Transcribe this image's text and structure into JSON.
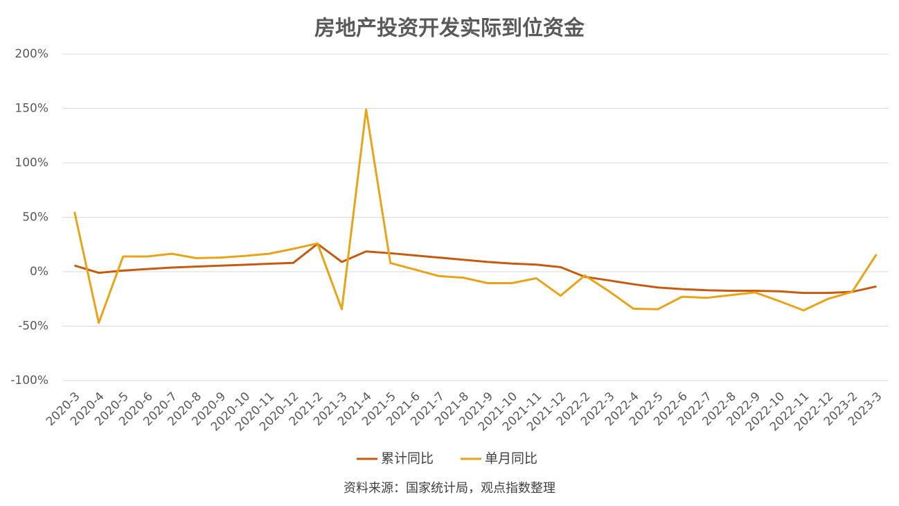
{
  "chart_data": {
    "type": "line",
    "title": "房地产投资开发实际到位资金",
    "categories": [
      "2020-3",
      "2020-4",
      "2020-5",
      "2020-6",
      "2020-7",
      "2020-8",
      "2020-9",
      "2020-10",
      "2020-11",
      "2020-12",
      "2021-2",
      "2021-3",
      "2021-4",
      "2021-5",
      "2021-6",
      "2021-7",
      "2021-8",
      "2021-9",
      "2021-10",
      "2021-11",
      "2021-12",
      "2022-2",
      "2022-3",
      "2022-4",
      "2022-5",
      "2022-6",
      "2022-7",
      "2022-8",
      "2022-9",
      "2022-10",
      "2022-11",
      "2022-12",
      "2023-2",
      "2023-3"
    ],
    "series": [
      {
        "name": "累计同比",
        "color": "#c55a11",
        "values": [
          5.7,
          -1,
          1,
          2.5,
          3.8,
          4.7,
          5.6,
          6.4,
          7.3,
          8.1,
          25.6,
          9,
          18.6,
          17,
          15,
          13,
          11,
          9,
          7.5,
          6.5,
          4.2,
          -4.7,
          -8,
          -11.5,
          -14.5,
          -16,
          -17,
          -17.5,
          -17.5,
          -18,
          -19.5,
          -19.5,
          -18.5,
          -13.5
        ]
      },
      {
        "name": "单月同比",
        "color": "#e8a317",
        "values": [
          55,
          -47,
          14,
          14,
          16.5,
          12.5,
          13,
          14.5,
          16.5,
          21,
          26,
          -34.5,
          149,
          8,
          2,
          -4,
          -5.5,
          -10.5,
          -10.5,
          -6,
          -22,
          -3.5,
          -18,
          -34,
          -34.5,
          -23,
          -24,
          -21.5,
          -19,
          -27,
          -35.5,
          -25,
          -18.5,
          16
        ]
      }
    ],
    "ylim": [
      -100,
      200
    ],
    "yticks": [
      {
        "value": -100,
        "label": "-100%"
      },
      {
        "value": -50,
        "label": "-50%"
      },
      {
        "value": 0,
        "label": "0%"
      },
      {
        "value": 50,
        "label": "50%"
      },
      {
        "value": 100,
        "label": "100%"
      },
      {
        "value": 150,
        "label": "150%"
      },
      {
        "value": 200,
        "label": "200%"
      }
    ],
    "grid": true,
    "legend": "bottom",
    "source": "资料来源：国家统计局，观点指数整理"
  }
}
